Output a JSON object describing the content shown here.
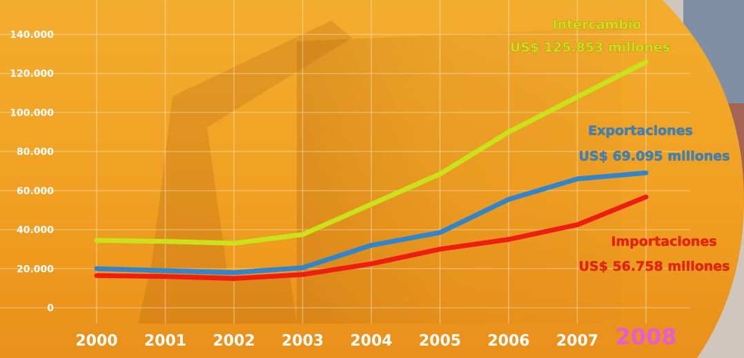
{
  "chart_data": {
    "type": "line",
    "x": [
      "2000",
      "2001",
      "2002",
      "2003",
      "2004",
      "2005",
      "2006",
      "2007",
      "2008"
    ],
    "highlight_x": "2008",
    "yticks": [
      "0",
      "20.000",
      "40.000",
      "60.000",
      "80.000",
      "100.000",
      "120.000",
      "140.000"
    ],
    "ylim": [
      0,
      140000
    ],
    "grid": true,
    "series": [
      {
        "key": "intercambio",
        "color": "#c9e21a",
        "values": [
          34500,
          34000,
          33000,
          37500,
          53000,
          68500,
          90000,
          108000,
          125853
        ],
        "annotation": [
          "Intercambio",
          "US$ 125.853 millones"
        ]
      },
      {
        "key": "exportaciones",
        "color": "#2f86cf",
        "values": [
          20000,
          19000,
          18000,
          20500,
          32000,
          38500,
          55500,
          66000,
          69095
        ],
        "annotation": [
          "Exportaciones",
          "US$ 69.095 millones"
        ]
      },
      {
        "key": "importaciones",
        "color": "#ef1d12",
        "values": [
          16500,
          16000,
          15000,
          17000,
          22500,
          30000,
          35000,
          42500,
          56758
        ],
        "annotation": [
          "Importaciones",
          "US$ 56.758 millones"
        ]
      }
    ]
  }
}
